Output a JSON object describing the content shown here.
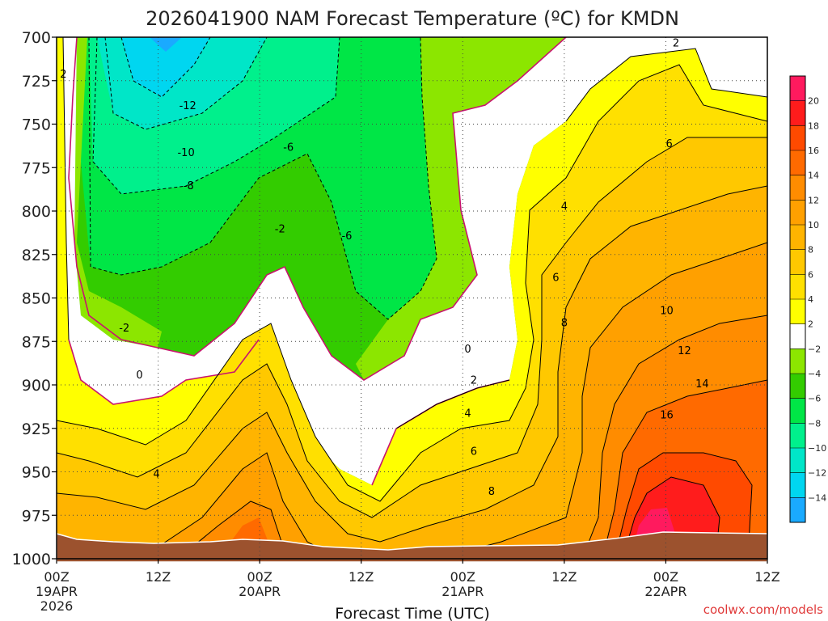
{
  "chart_data": {
    "type": "heatmap",
    "title": "2026041900 NAM Forecast Temperature (ºC) for KMDN",
    "xlabel": "Forecast Time (UTC)",
    "ylabel": "",
    "credit": "coolwx.com/models",
    "x_hours": [
      0,
      84
    ],
    "x_ticks": [
      {
        "hour": 0,
        "label": "00Z",
        "sub1": "19APR",
        "sub2": "2026"
      },
      {
        "hour": 12,
        "label": "12Z",
        "sub1": "",
        "sub2": ""
      },
      {
        "hour": 24,
        "label": "00Z",
        "sub1": "20APR",
        "sub2": ""
      },
      {
        "hour": 36,
        "label": "12Z",
        "sub1": "",
        "sub2": ""
      },
      {
        "hour": 48,
        "label": "00Z",
        "sub1": "21APR",
        "sub2": ""
      },
      {
        "hour": 60,
        "label": "12Z",
        "sub1": "",
        "sub2": ""
      },
      {
        "hour": 72,
        "label": "00Z",
        "sub1": "22APR",
        "sub2": ""
      },
      {
        "hour": 84,
        "label": "12Z",
        "sub1": "",
        "sub2": ""
      }
    ],
    "y_range_hpa": [
      700,
      1000
    ],
    "y_ticks": [
      "700",
      "725",
      "750",
      "775",
      "800",
      "825",
      "850",
      "875",
      "900",
      "925",
      "950",
      "975",
      "1000"
    ],
    "colorbar": {
      "labels": [
        "20",
        "18",
        "16",
        "14",
        "12",
        "10",
        "8",
        "6",
        "4",
        "2",
        "−2",
        "−4",
        "−6",
        "−8",
        "−10",
        "−12",
        "−14"
      ],
      "colors": [
        "#ff1a5e",
        "#ff1c1c",
        "#ff4a00",
        "#ff6a00",
        "#ff8c00",
        "#ffa000",
        "#ffb400",
        "#ffc800",
        "#ffe000",
        "#ffff00",
        "#ffffff",
        "#8ce600",
        "#33cc00",
        "#00e646",
        "#00f08c",
        "#00e6c8",
        "#00d6f0",
        "#1aaaff"
      ]
    },
    "contour_labels": [
      {
        "text": "2",
        "hour": 0.8,
        "hpa": 721
      },
      {
        "text": "-12",
        "hour": 15.5,
        "hpa": 739
      },
      {
        "text": "-10",
        "hour": 15.3,
        "hpa": 766
      },
      {
        "text": "-8",
        "hour": 15.6,
        "hpa": 785
      },
      {
        "text": "-6",
        "hour": 27.4,
        "hpa": 763
      },
      {
        "text": "-2",
        "hour": 26.4,
        "hpa": 810
      },
      {
        "text": "-6",
        "hour": 34.3,
        "hpa": 814
      },
      {
        "text": "-2",
        "hour": 8.0,
        "hpa": 867
      },
      {
        "text": "0",
        "hour": 9.8,
        "hpa": 894
      },
      {
        "text": "4",
        "hour": 11.8,
        "hpa": 951
      },
      {
        "text": "2",
        "hour": 73.2,
        "hpa": 703
      },
      {
        "text": "6",
        "hour": 72.4,
        "hpa": 761
      },
      {
        "text": "4",
        "hour": 60.0,
        "hpa": 797
      },
      {
        "text": "6",
        "hour": 59.0,
        "hpa": 838
      },
      {
        "text": "8",
        "hour": 60.0,
        "hpa": 864
      },
      {
        "text": "10",
        "hour": 72.1,
        "hpa": 857
      },
      {
        "text": "12",
        "hour": 74.2,
        "hpa": 880
      },
      {
        "text": "14",
        "hour": 76.3,
        "hpa": 899
      },
      {
        "text": "16",
        "hour": 72.1,
        "hpa": 917
      },
      {
        "text": "0",
        "hour": 48.6,
        "hpa": 879
      },
      {
        "text": "2",
        "hour": 49.3,
        "hpa": 897
      },
      {
        "text": "4",
        "hour": 48.6,
        "hpa": 916
      },
      {
        "text": "6",
        "hour": 49.3,
        "hpa": 938
      },
      {
        "text": "8",
        "hour": 51.4,
        "hpa": 961
      }
    ]
  }
}
